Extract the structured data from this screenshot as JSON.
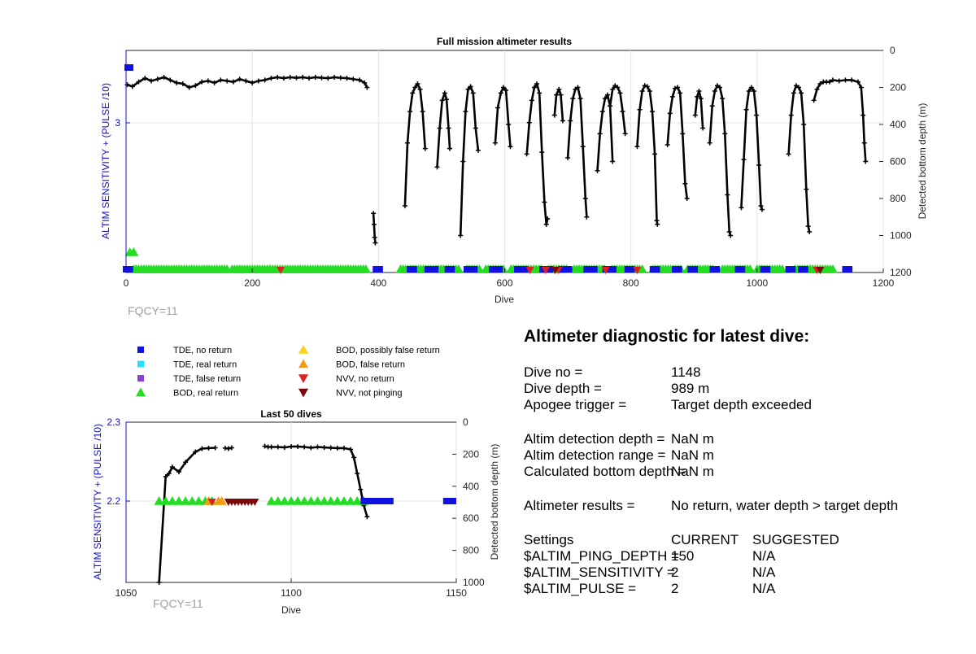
{
  "chart_data": [
    {
      "type": "scatter",
      "title": "Full mission altimeter results",
      "xlabel": "Dive",
      "ylabel_left": "ALTIM SENSITIVITY + (PULSE /10)",
      "ylabel_right": "Detected bottom depth (m)",
      "xlim": [
        0,
        1200
      ],
      "xticks": [
        "0",
        "200",
        "400",
        "600",
        "800",
        "1000",
        "1200"
      ],
      "ylim_right": [
        0,
        1200
      ],
      "yticks_right": [
        "0",
        "200",
        "400",
        "600",
        "800",
        "1000",
        "1200"
      ],
      "yticks_left": [
        "3"
      ],
      "annotation": "FQCY=11",
      "grid": true,
      "bottom_depth": [
        [
          [
            2,
            185
          ],
          [
            10,
            195
          ],
          [
            20,
            170
          ],
          [
            30,
            150
          ],
          [
            40,
            165
          ],
          [
            50,
            155
          ],
          [
            60,
            145
          ],
          [
            70,
            160
          ],
          [
            80,
            175
          ],
          [
            90,
            180
          ],
          [
            100,
            200
          ],
          [
            110,
            190
          ],
          [
            120,
            170
          ],
          [
            130,
            165
          ],
          [
            140,
            175
          ],
          [
            150,
            160
          ],
          [
            160,
            165
          ],
          [
            170,
            170
          ],
          [
            180,
            155
          ],
          [
            190,
            165
          ],
          [
            200,
            175
          ],
          [
            210,
            165
          ],
          [
            220,
            160
          ],
          [
            230,
            150
          ],
          [
            240,
            145
          ],
          [
            250,
            150
          ],
          [
            260,
            145
          ],
          [
            270,
            148
          ],
          [
            280,
            145
          ],
          [
            290,
            150
          ],
          [
            300,
            145
          ],
          [
            310,
            148
          ],
          [
            320,
            150
          ],
          [
            330,
            145
          ],
          [
            340,
            148
          ],
          [
            350,
            150
          ],
          [
            360,
            155
          ],
          [
            370,
            160
          ],
          [
            378,
            175
          ],
          [
            382,
            200
          ]
        ],
        [
          [
            392,
            880
          ],
          [
            393,
            940
          ],
          [
            394,
            1010
          ],
          [
            395,
            1040
          ]
        ],
        [
          [
            442,
            840
          ],
          [
            446,
            500
          ],
          [
            450,
            330
          ],
          [
            454,
            230
          ],
          [
            458,
            200
          ],
          [
            462,
            180
          ],
          [
            466,
            210
          ],
          [
            470,
            330
          ],
          [
            474,
            530
          ]
        ],
        [
          [
            493,
            630
          ],
          [
            497,
            420
          ],
          [
            501,
            270
          ],
          [
            505,
            230
          ],
          [
            508,
            265
          ],
          [
            511,
            420
          ],
          [
            513,
            530
          ]
        ],
        [
          [
            530,
            1000
          ],
          [
            534,
            600
          ],
          [
            538,
            330
          ],
          [
            542,
            210
          ],
          [
            546,
            195
          ],
          [
            550,
            230
          ],
          [
            554,
            420
          ],
          [
            558,
            540
          ]
        ],
        [
          [
            585,
            500
          ],
          [
            589,
            310
          ],
          [
            594,
            230
          ],
          [
            598,
            200
          ],
          [
            602,
            215
          ],
          [
            606,
            400
          ],
          [
            609,
            520
          ]
        ],
        [
          [
            635,
            560
          ],
          [
            639,
            390
          ],
          [
            643,
            270
          ],
          [
            647,
            200
          ],
          [
            651,
            180
          ],
          [
            655,
            230
          ],
          [
            659,
            550
          ],
          [
            663,
            820
          ],
          [
            666,
            940
          ],
          [
            668,
            910
          ]
        ],
        [
          [
            679,
            350
          ],
          [
            682,
            240
          ],
          [
            686,
            210
          ],
          [
            689,
            240
          ],
          [
            692,
            380
          ]
        ],
        [
          [
            700,
            580
          ],
          [
            704,
            380
          ],
          [
            708,
            260
          ],
          [
            712,
            210
          ],
          [
            716,
            200
          ],
          [
            720,
            260
          ],
          [
            724,
            520
          ],
          [
            728,
            800
          ],
          [
            730,
            900
          ]
        ],
        [
          [
            747,
            650
          ],
          [
            751,
            450
          ],
          [
            755,
            330
          ],
          [
            759,
            260
          ],
          [
            763,
            240
          ],
          [
            767,
            300
          ],
          [
            771,
            600
          ]
        ],
        [
          [
            767,
            300
          ],
          [
            771,
            210
          ],
          [
            775,
            190
          ],
          [
            779,
            200
          ],
          [
            783,
            230
          ],
          [
            787,
            330
          ],
          [
            791,
            450
          ]
        ],
        [
          [
            810,
            520
          ],
          [
            814,
            320
          ],
          [
            818,
            220
          ],
          [
            822,
            190
          ],
          [
            826,
            195
          ],
          [
            830,
            220
          ],
          [
            834,
            330
          ],
          [
            838,
            560
          ],
          [
            841,
            920
          ],
          [
            842,
            940
          ]
        ],
        [
          [
            858,
            510
          ],
          [
            862,
            340
          ],
          [
            866,
            250
          ],
          [
            870,
            205
          ],
          [
            874,
            200
          ],
          [
            878,
            230
          ],
          [
            882,
            450
          ],
          [
            886,
            720
          ],
          [
            889,
            800
          ]
        ],
        [
          [
            902,
            350
          ],
          [
            905,
            250
          ],
          [
            908,
            220
          ],
          [
            911,
            260
          ],
          [
            914,
            420
          ]
        ],
        [
          [
            925,
            500
          ],
          [
            929,
            300
          ],
          [
            933,
            220
          ],
          [
            937,
            190
          ],
          [
            941,
            200
          ],
          [
            945,
            260
          ],
          [
            949,
            450
          ],
          [
            953,
            780
          ],
          [
            956,
            980
          ],
          [
            958,
            1000
          ]
        ],
        [
          [
            975,
            850
          ],
          [
            979,
            590
          ],
          [
            983,
            320
          ],
          [
            987,
            220
          ],
          [
            991,
            200
          ],
          [
            995,
            220
          ],
          [
            999,
            350
          ],
          [
            1003,
            620
          ],
          [
            1006,
            840
          ],
          [
            1008,
            860
          ]
        ],
        [
          [
            1050,
            560
          ],
          [
            1054,
            350
          ],
          [
            1058,
            230
          ],
          [
            1062,
            190
          ],
          [
            1066,
            200
          ],
          [
            1070,
            230
          ],
          [
            1074,
            400
          ],
          [
            1078,
            750
          ],
          [
            1081,
            950
          ],
          [
            1083,
            980
          ]
        ],
        [
          [
            1090,
            270
          ],
          [
            1095,
            210
          ],
          [
            1100,
            180
          ],
          [
            1105,
            170
          ],
          [
            1110,
            170
          ],
          [
            1115,
            170
          ],
          [
            1120,
            160
          ],
          [
            1130,
            165
          ],
          [
            1140,
            160
          ],
          [
            1150,
            160
          ],
          [
            1160,
            170
          ],
          [
            1165,
            200
          ],
          [
            1168,
            350
          ],
          [
            1170,
            500
          ],
          [
            1172,
            600
          ]
        ]
      ],
      "tde_no_return_segments": [
        [
          0,
          8
        ],
        [
          396,
          402
        ],
        [
          450,
          460
        ],
        [
          478,
          492
        ],
        [
          510,
          520
        ],
        [
          540,
          552
        ],
        [
          580,
          592
        ],
        [
          620,
          632
        ],
        [
          660,
          672
        ],
        [
          690,
          702
        ],
        [
          730,
          742
        ],
        [
          760,
          772
        ],
        [
          795,
          805
        ],
        [
          835,
          845
        ],
        [
          870,
          880
        ],
        [
          895,
          905
        ],
        [
          930,
          940
        ],
        [
          970,
          980
        ],
        [
          1010,
          1020
        ],
        [
          1050,
          1060
        ],
        [
          1070,
          1080
        ],
        [
          1140,
          1150
        ]
      ],
      "bod_real_return_segments": [
        [
          12,
          160
        ],
        [
          168,
          380
        ],
        [
          435,
          530
        ],
        [
          540,
          560
        ],
        [
          570,
          600
        ],
        [
          610,
          660
        ],
        [
          670,
          700
        ],
        [
          710,
          760
        ],
        [
          770,
          820
        ],
        [
          835,
          880
        ],
        [
          890,
          930
        ],
        [
          945,
          990
        ],
        [
          1000,
          1040
        ],
        [
          1060,
          1120
        ]
      ],
      "nvv_no_return": [
        245,
        640,
        665,
        685,
        760,
        810,
        1095
      ],
      "nvv_not_pinging": [
        680,
        1100
      ]
    },
    {
      "type": "scatter",
      "title": "Last 50 dives",
      "xlabel": "Dive",
      "ylabel_left": "ALTIM SENSITIVITY + (PULSE /10)",
      "ylabel_right": "Detected bottom depth (m)",
      "xlim": [
        1050,
        1150
      ],
      "xticks": [
        "1050",
        "1100",
        "1150"
      ],
      "yticks_left": [
        "2.3",
        "2.2"
      ],
      "ylim_right": [
        0,
        1000
      ],
      "yticks_right": [
        "0",
        "200",
        "400",
        "600",
        "800",
        "1000"
      ],
      "annotation": "FQCY=11",
      "grid": true,
      "bottom_depth": [
        [
          [
            1060,
            1000
          ],
          [
            1062,
            340
          ],
          [
            1063,
            320
          ],
          [
            1064,
            280
          ],
          [
            1066,
            310
          ],
          [
            1068,
            250
          ],
          [
            1071,
            185
          ],
          [
            1073,
            165
          ],
          [
            1075,
            162
          ],
          [
            1077,
            160
          ]
        ],
        [
          [
            1080,
            162
          ],
          [
            1081,
            165
          ],
          [
            1082,
            160
          ]
        ],
        [
          [
            1092,
            150
          ],
          [
            1093,
            155
          ],
          [
            1094,
            155
          ],
          [
            1096,
            155
          ],
          [
            1098,
            158
          ],
          [
            1100,
            152
          ],
          [
            1102,
            152
          ],
          [
            1104,
            155
          ],
          [
            1106,
            160
          ],
          [
            1108,
            155
          ],
          [
            1110,
            158
          ],
          [
            1112,
            160
          ],
          [
            1114,
            162
          ],
          [
            1116,
            162
          ],
          [
            1118,
            170
          ],
          [
            1119,
            220
          ],
          [
            1120,
            320
          ],
          [
            1121,
            420
          ],
          [
            1122,
            520
          ],
          [
            1123,
            590
          ]
        ]
      ],
      "tde_no_return_segments": [
        [
          1122,
          1130
        ],
        [
          1147,
          1149
        ]
      ],
      "bod_real_return": [
        1060,
        1062,
        1064,
        1066,
        1068,
        1070,
        1072,
        1074,
        1076,
        1094,
        1096,
        1098,
        1100,
        1102,
        1104,
        1106,
        1108,
        1110,
        1112,
        1114,
        1116,
        1118,
        1120,
        1122
      ],
      "bod_false_return": [
        1075,
        1078,
        1079
      ],
      "nvv_no_return": [
        1076
      ],
      "nvv_not_pinging": [
        1081,
        1082,
        1083,
        1084,
        1085,
        1086,
        1087,
        1088,
        1089
      ]
    }
  ],
  "legend": {
    "left": [
      {
        "label": "TDE, no return",
        "marker": "square",
        "color": "#1010e0"
      },
      {
        "label": "TDE, real return",
        "marker": "square",
        "color": "#22e0ff"
      },
      {
        "label": "TDE, false return",
        "marker": "square",
        "color": "#8a3fd6"
      },
      {
        "label": "BOD, real return",
        "marker": "triangle-up",
        "color": "#22dd22"
      }
    ],
    "right": [
      {
        "label": "BOD, possibly false return",
        "marker": "triangle-up",
        "color": "#ffd21a"
      },
      {
        "label": "BOD, false return",
        "marker": "triangle-up",
        "color": "#f39c12"
      },
      {
        "label": "NVV, no return",
        "marker": "triangle-down",
        "color": "#e02020"
      },
      {
        "label": "NVV, not pinging",
        "marker": "triangle-down",
        "color": "#7a0a0a"
      }
    ]
  },
  "diagnostic": {
    "title": "Altimeter diagnostic for latest dive:",
    "dive_no_label": "Dive no =",
    "dive_no": "1148",
    "dive_depth_label": "Dive depth =",
    "dive_depth": "989 m",
    "apogee_label": "Apogee trigger =",
    "apogee": "Target depth exceeded",
    "detect_depth_label": "Altim detection depth =",
    "detect_depth": "NaN m",
    "detect_range_label": "Altim detection range =",
    "detect_range": "NaN m",
    "calc_bottom_label": "Calculated bottom depth =",
    "calc_bottom": "NaN m",
    "results_label": "Altimeter results =",
    "results": "No return, water depth > target depth",
    "settings_header": "Settings",
    "current_header": "CURRENT",
    "suggested_header": "SUGGESTED",
    "settings": [
      {
        "name": "$ALTIM_PING_DEPTH =",
        "current": "150",
        "suggested": "N/A"
      },
      {
        "name": "$ALTIM_SENSITIVITY =",
        "current": "2",
        "suggested": "N/A"
      },
      {
        "name": "$ALTIM_PULSE =",
        "current": "2",
        "suggested": "N/A"
      }
    ]
  },
  "colors": {
    "blue_axis": "#1010c8",
    "annotation_gray": "#a0a0a0",
    "grid": "#e3e3e3"
  }
}
